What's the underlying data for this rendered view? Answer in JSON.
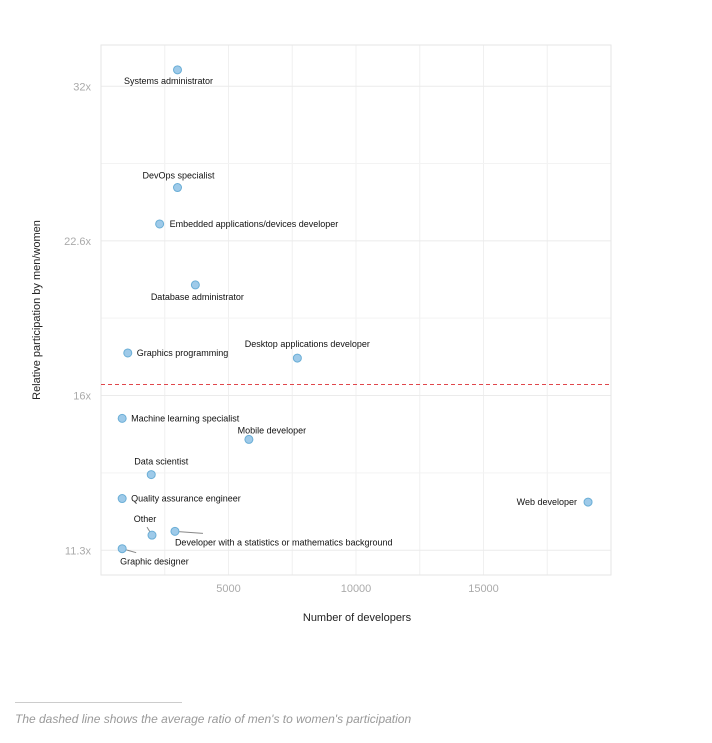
{
  "chart_data": {
    "type": "scatter",
    "xlabel": "Number of developers",
    "ylabel": "Relative participation by men/women",
    "xlim": [
      0,
      20000
    ],
    "ylim": [
      10.7,
      35.1
    ],
    "y_scale": "log",
    "grid": true,
    "x_ticks": [
      {
        "value": 5000,
        "label": "5000"
      },
      {
        "value": 10000,
        "label": "10000"
      },
      {
        "value": 15000,
        "label": "15000"
      }
    ],
    "y_ticks": [
      {
        "value": 11.31,
        "label": "11.3x"
      },
      {
        "value": 16,
        "label": "16x"
      },
      {
        "value": 22.63,
        "label": "22.6x"
      },
      {
        "value": 32,
        "label": "32x"
      }
    ],
    "reference_line": {
      "y": 16.4,
      "style": "dashed",
      "color": "#e0474c"
    },
    "point_color": "#9ecae9",
    "point_stroke": "#6aaed6",
    "points": [
      {
        "label": "Systems administrator",
        "x": 3000,
        "y": 33.2
      },
      {
        "label": "DevOps specialist",
        "x": 3000,
        "y": 25.5
      },
      {
        "label": "Embedded applications/devices developer",
        "x": 2300,
        "y": 23.5
      },
      {
        "label": "Database administrator",
        "x": 3700,
        "y": 20.5
      },
      {
        "label": "Graphics programming",
        "x": 1050,
        "y": 17.6
      },
      {
        "label": "Desktop applications developer",
        "x": 7700,
        "y": 17.4
      },
      {
        "label": "Machine learning specialist",
        "x": 830,
        "y": 15.2
      },
      {
        "label": "Mobile developer",
        "x": 5800,
        "y": 14.5
      },
      {
        "label": "Data scientist",
        "x": 1970,
        "y": 13.4
      },
      {
        "label": "Quality assurance engineer",
        "x": 830,
        "y": 12.7
      },
      {
        "label": "Web developer",
        "x": 19100,
        "y": 12.6
      },
      {
        "label": "Other",
        "x": 2000,
        "y": 11.7
      },
      {
        "label": "Developer with a statistics or mathematics background",
        "x": 2900,
        "y": 11.8
      },
      {
        "label": "Graphic designer",
        "x": 830,
        "y": 11.35
      }
    ]
  },
  "footnote": "The dashed line shows the average ratio of men's to women's participation"
}
